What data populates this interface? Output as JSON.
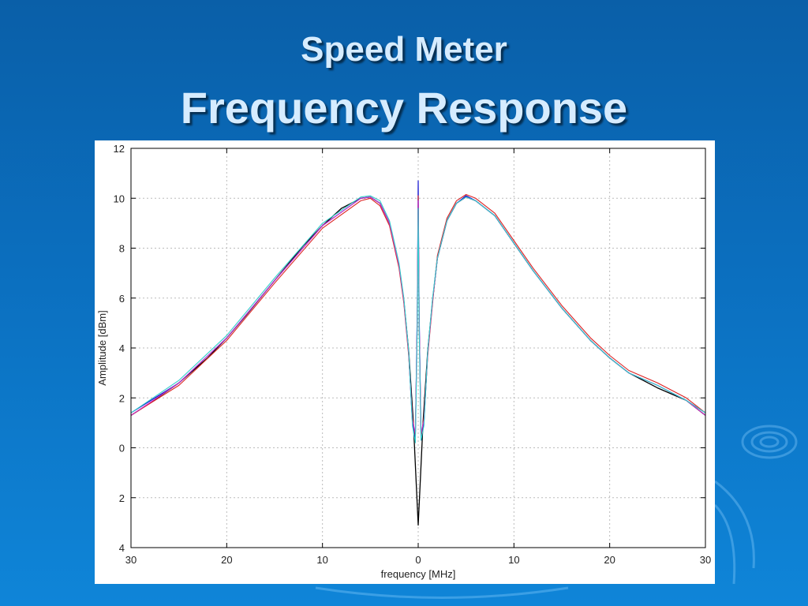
{
  "slide": {
    "title_line1": "Speed Meter",
    "title_line2": "Frequency Response"
  },
  "chart_data": {
    "type": "line",
    "xlabel": "frequency [MHz]",
    "ylabel": "Amplitude [dBm]",
    "xlim": [
      -30,
      30
    ],
    "ylim": [
      -4,
      12
    ],
    "x_tick_labels": [
      "30",
      "20",
      "10",
      "0",
      "10",
      "20",
      "30"
    ],
    "x_tick_values": [
      -30,
      -20,
      -10,
      0,
      10,
      20,
      30
    ],
    "y_tick_labels": [
      "4",
      "2",
      "0",
      "2",
      "4",
      "6",
      "8",
      "10",
      "12"
    ],
    "y_tick_values": [
      -4,
      -2,
      0,
      2,
      4,
      6,
      8,
      10,
      12
    ],
    "grid": true,
    "series": [
      {
        "color": "#000000",
        "x": [
          -30,
          -28,
          -25,
          -22,
          -20,
          -18,
          -15,
          -12,
          -10,
          -8,
          -6,
          -5,
          -4,
          -3,
          -2,
          -1.5,
          -1,
          -0.5,
          -0.2,
          0,
          0.2,
          0.5,
          1,
          1.5,
          2,
          3,
          4,
          5,
          6,
          8,
          10,
          12,
          15,
          18,
          20,
          22,
          25,
          28,
          30
        ],
        "y": [
          1.3,
          1.8,
          2.6,
          3.6,
          4.4,
          5.3,
          6.7,
          8.1,
          8.9,
          9.6,
          10.0,
          10.05,
          9.8,
          9.0,
          7.3,
          5.9,
          3.9,
          1.0,
          -1.5,
          -3.1,
          -1.5,
          1.0,
          3.9,
          5.9,
          7.6,
          9.1,
          9.8,
          10.05,
          9.9,
          9.3,
          8.2,
          7.1,
          5.6,
          4.3,
          3.6,
          3.0,
          2.4,
          1.9,
          1.3
        ]
      },
      {
        "color": "#0000cc",
        "x": [
          -30,
          -25,
          -20,
          -15,
          -10,
          -6,
          -5,
          -4,
          -3,
          -2,
          -1.5,
          -1,
          -0.6,
          -0.3,
          -0.1,
          0,
          0.1,
          0.3,
          0.6,
          1,
          1.5,
          2,
          3,
          4,
          5,
          6,
          8,
          10,
          12,
          15,
          18,
          20,
          22,
          25,
          28,
          30
        ],
        "y": [
          1.4,
          2.6,
          4.4,
          6.7,
          8.9,
          10.0,
          10.05,
          9.8,
          9.0,
          7.3,
          5.9,
          3.8,
          1.0,
          0.4,
          5.5,
          10.7,
          5.5,
          0.3,
          1.0,
          3.8,
          5.9,
          7.6,
          9.1,
          9.8,
          10.1,
          9.9,
          9.3,
          8.2,
          7.1,
          5.6,
          4.3,
          3.6,
          3.0,
          2.5,
          1.9,
          1.4
        ]
      },
      {
        "color": "#dd2222",
        "x": [
          -30,
          -25,
          -20,
          -15,
          -10,
          -6,
          -5,
          -4,
          -3,
          -2,
          -1.5,
          -1,
          -0.6,
          -0.3,
          -0.1,
          0,
          0.1,
          0.3,
          0.6,
          1,
          1.5,
          2,
          3,
          4,
          5,
          6,
          8,
          10,
          12,
          15,
          18,
          20,
          22,
          25,
          28,
          30
        ],
        "y": [
          1.3,
          2.5,
          4.3,
          6.6,
          8.8,
          9.9,
          10.0,
          9.7,
          8.9,
          7.2,
          5.8,
          3.7,
          1.2,
          0.5,
          5.0,
          10.1,
          5.0,
          0.5,
          1.2,
          3.7,
          5.8,
          7.7,
          9.2,
          9.9,
          10.15,
          10.0,
          9.4,
          8.3,
          7.2,
          5.7,
          4.4,
          3.7,
          3.1,
          2.6,
          2.0,
          1.4
        ]
      },
      {
        "color": "#cc33cc",
        "x": [
          -30,
          -25,
          -20,
          -15,
          -10,
          -6,
          -5,
          -4,
          -3,
          -2,
          -1.5,
          -1,
          -0.6,
          -0.3,
          -0.1,
          0,
          0.1,
          0.3,
          0.6,
          1,
          1.5,
          2,
          3,
          4,
          5,
          6,
          8,
          10,
          12,
          15,
          18,
          20,
          22,
          25,
          28,
          30
        ],
        "y": [
          1.3,
          2.6,
          4.4,
          6.7,
          8.9,
          10.0,
          10.05,
          9.8,
          9.0,
          7.3,
          5.9,
          3.8,
          1.1,
          0.6,
          5.2,
          9.9,
          5.2,
          0.6,
          1.1,
          3.8,
          5.9,
          7.6,
          9.1,
          9.8,
          10.05,
          9.9,
          9.3,
          8.2,
          7.1,
          5.6,
          4.3,
          3.6,
          3.0,
          2.5,
          1.9,
          1.3
        ]
      },
      {
        "color": "#33cccc",
        "x": [
          -30,
          -25,
          -20,
          -15,
          -10,
          -6,
          -5,
          -4,
          -3,
          -2,
          -1.5,
          -1,
          -0.6,
          -0.3,
          -0.1,
          0,
          0.1,
          0.3,
          0.6,
          1,
          1.5,
          2,
          3,
          4,
          5,
          6,
          8,
          10,
          12,
          15,
          18,
          20,
          22,
          25,
          28,
          30
        ],
        "y": [
          1.4,
          2.7,
          4.5,
          6.8,
          9.0,
          10.05,
          10.1,
          9.9,
          9.1,
          7.4,
          6.0,
          3.9,
          0.9,
          0.2,
          4.8,
          9.6,
          4.8,
          0.3,
          0.9,
          3.9,
          6.0,
          7.6,
          9.1,
          9.8,
          10.05,
          9.9,
          9.3,
          8.2,
          7.1,
          5.6,
          4.3,
          3.6,
          3.0,
          2.5,
          1.9,
          1.4
        ]
      }
    ]
  }
}
